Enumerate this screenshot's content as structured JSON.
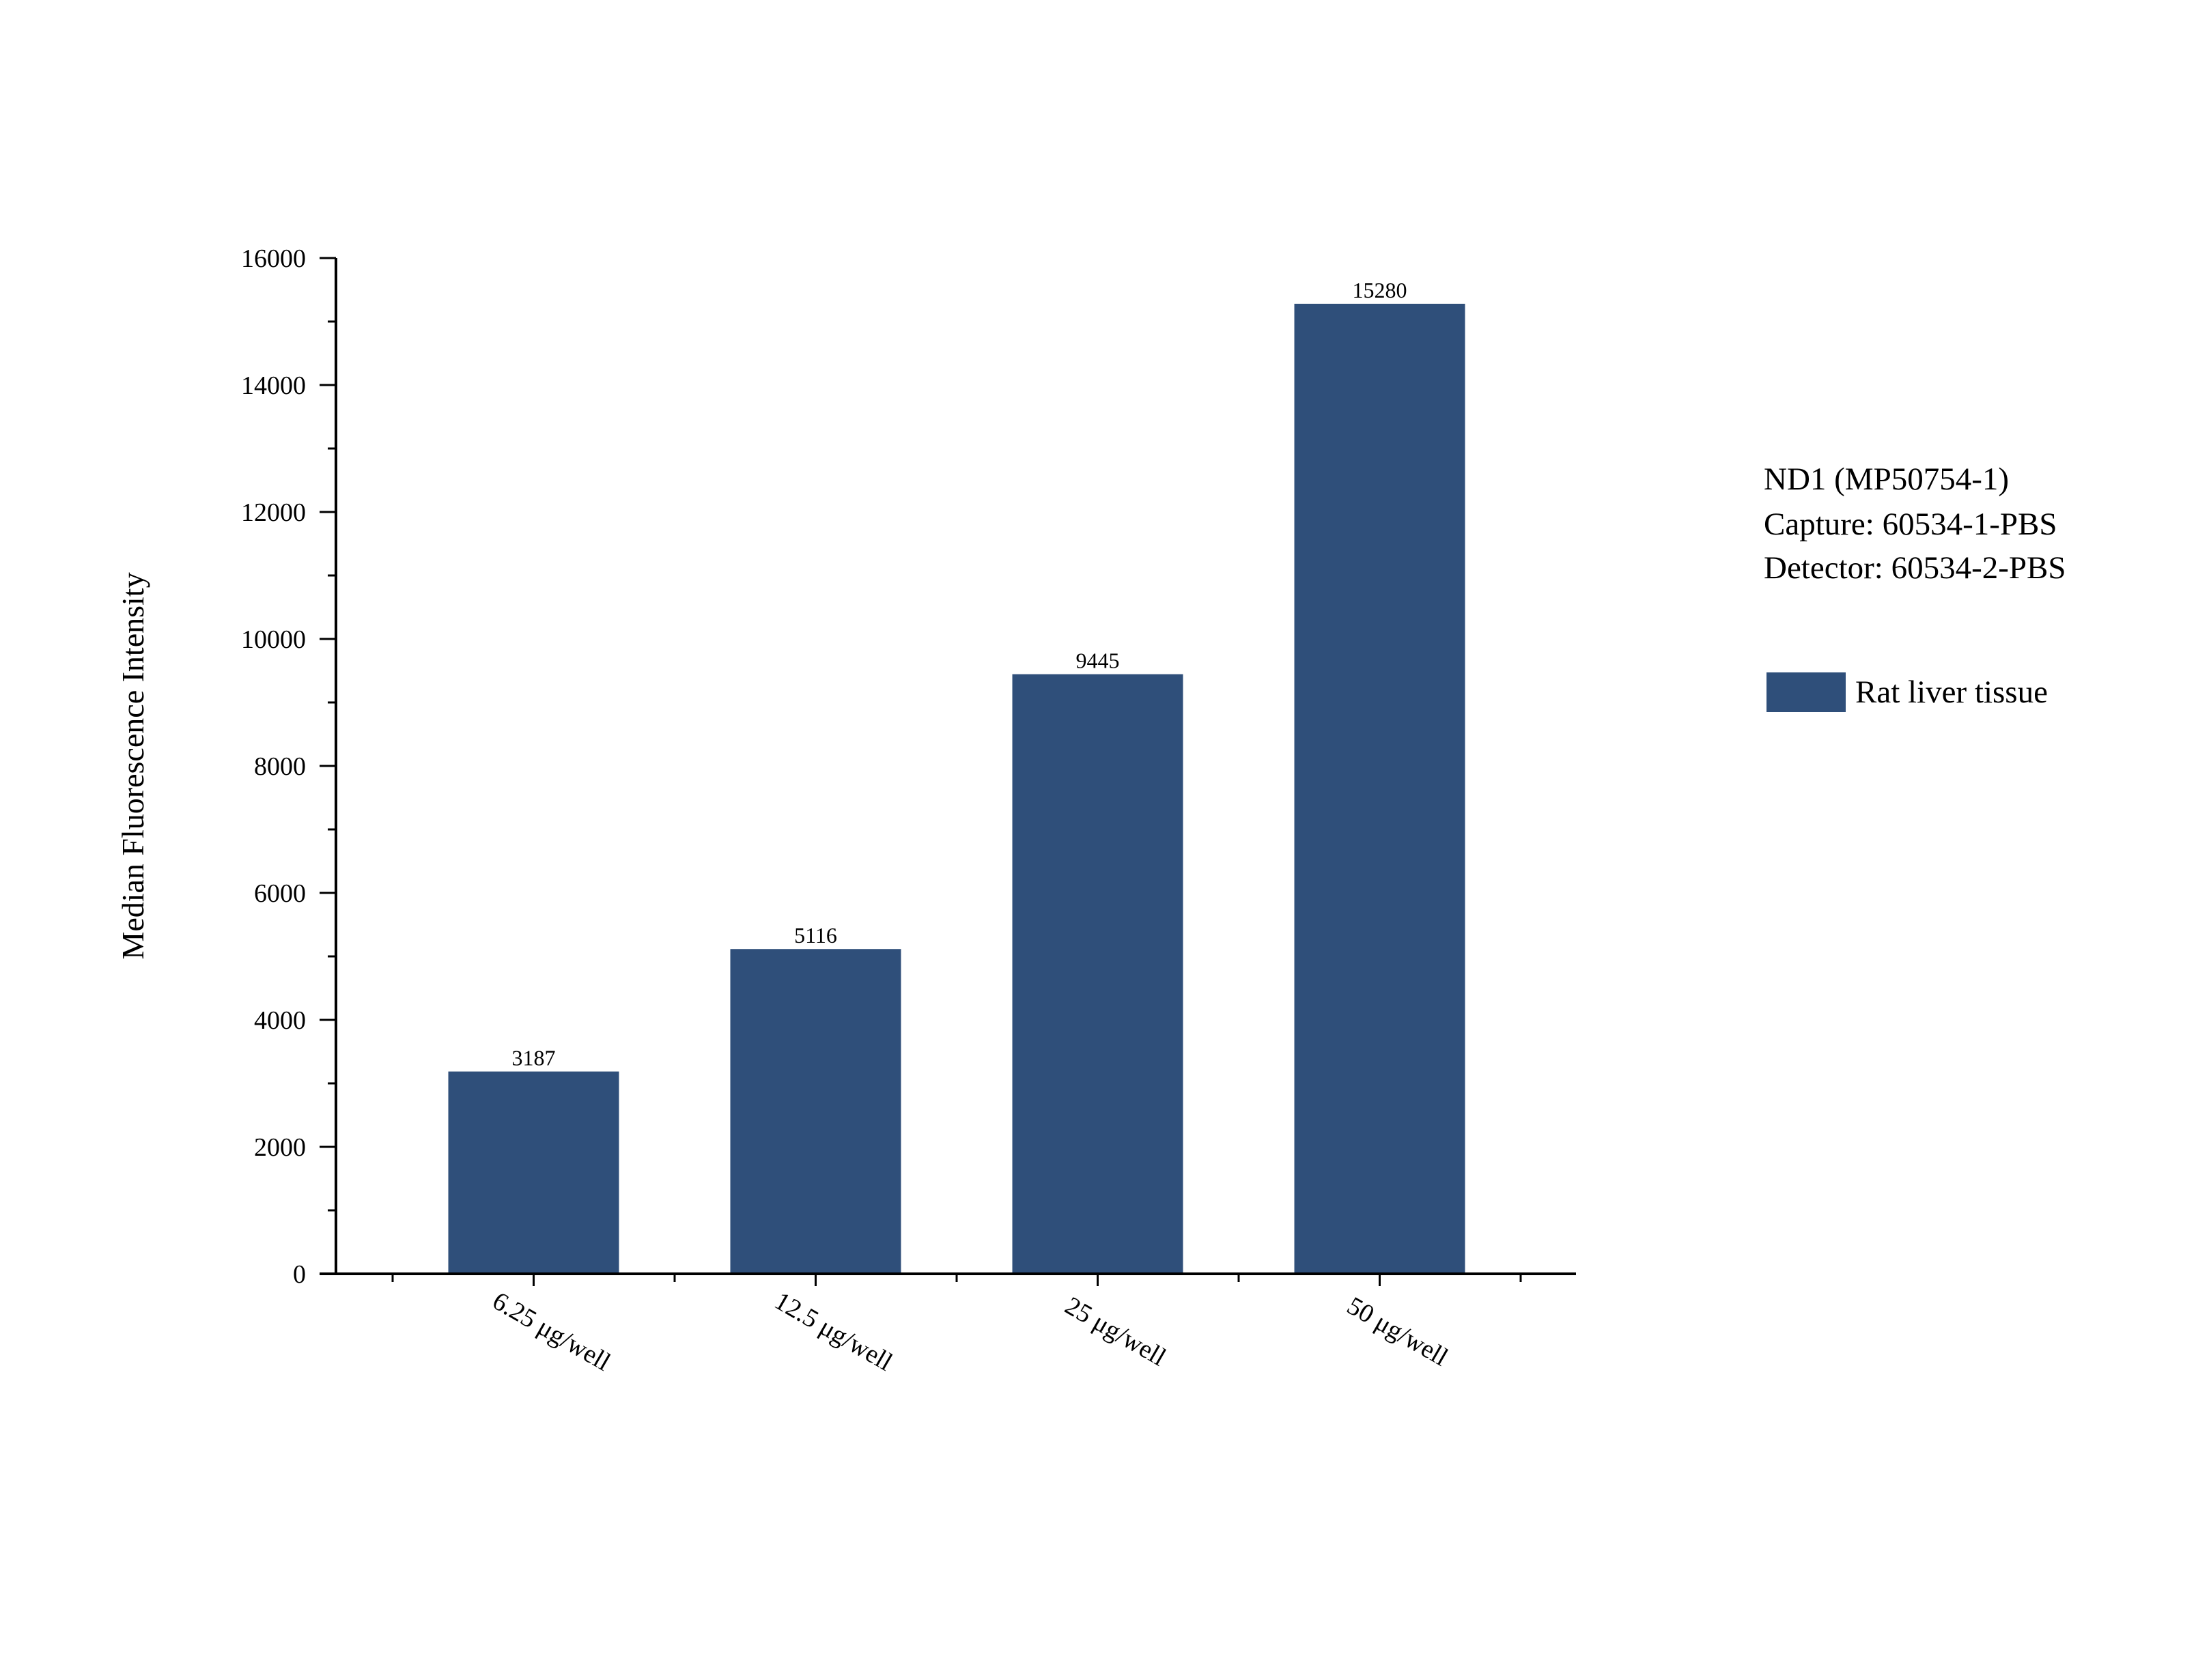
{
  "chart_data": {
    "type": "bar",
    "categories": [
      "6.25 μg/well",
      "12.5 μg/well",
      "25 μg/well",
      "50 μg/well"
    ],
    "series": [
      {
        "name": "Rat liver tissue",
        "values": [
          3187,
          5116,
          9445,
          15280
        ],
        "color": "#2f4f7a"
      }
    ],
    "data_labels": [
      "3187",
      "5116",
      "9445",
      "15280"
    ],
    "xlabel": "",
    "ylabel": "Median Fluorescence Intensity",
    "ylim": [
      0,
      16000
    ],
    "yticks": [
      0,
      2000,
      4000,
      6000,
      8000,
      10000,
      12000,
      14000,
      16000
    ],
    "ytick_labels": [
      "0",
      "2000",
      "4000",
      "6000",
      "8000",
      "10000",
      "12000",
      "14000",
      "16000"
    ],
    "grid": false,
    "legend_position": "right",
    "annotations": [
      "ND1 (MP50754-1)",
      "Capture: 60534-1-PBS",
      "Detector: 60534-2-PBS"
    ]
  }
}
